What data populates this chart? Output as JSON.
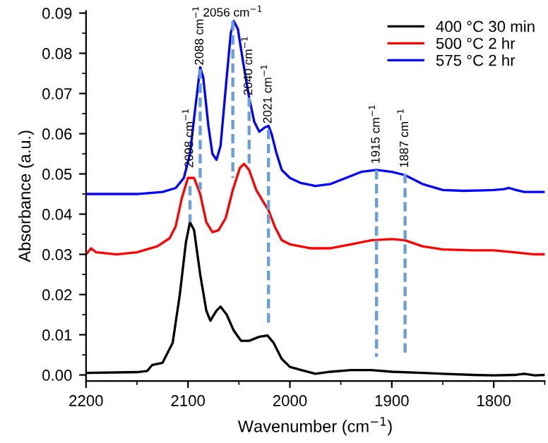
{
  "chart_data": {
    "type": "line",
    "xlabel": "Wavenumber (cm$^{−1}$)",
    "ylabel": "Absorbance (a.u.)",
    "xlim": [
      2200,
      1750
    ],
    "ylim": [
      -0.0015,
      0.0905
    ],
    "xticks": [
      2200,
      2100,
      2000,
      1900,
      1800
    ],
    "yticks": [
      {
        "value": 0,
        "label": "0.00"
      },
      {
        "value": 0.01,
        "label": "0.01"
      },
      {
        "value": 0.02,
        "label": "0.02"
      },
      {
        "value": 0.03,
        "label": "0.03"
      },
      {
        "value": 0.04,
        "label": "0.04"
      },
      {
        "value": 0.05,
        "label": "0.05"
      },
      {
        "value": 0.06,
        "label": "0.06"
      },
      {
        "value": 0.07,
        "label": "0.07"
      },
      {
        "value": 0.08,
        "label": "0.08"
      },
      {
        "value": 0.09,
        "label": "0.09"
      }
    ],
    "grid": false,
    "legend": "top right",
    "marker": "none",
    "line_style": "solid",
    "series": [
      {
        "name": "400 °C 30 min",
        "color": "#000000",
        "x": [
          2200,
          2150,
          2140,
          2135,
          2125,
          2115,
          2108,
          2102,
          2098,
          2094,
          2088,
          2082,
          2078,
          2072,
          2068,
          2062,
          2055,
          2048,
          2040,
          2030,
          2022,
          2016,
          2008,
          2000,
          1990,
          1975,
          1960,
          1940,
          1920,
          1900,
          1870,
          1850,
          1820,
          1800,
          1780,
          1770,
          1760,
          1750
        ],
        "values": [
          0.0005,
          0.0007,
          0.001,
          0.0025,
          0.003,
          0.008,
          0.02,
          0.033,
          0.038,
          0.036,
          0.025,
          0.016,
          0.0135,
          0.016,
          0.017,
          0.015,
          0.011,
          0.0085,
          0.0085,
          0.0095,
          0.0098,
          0.008,
          0.004,
          0.002,
          0.0013,
          0.0003,
          0.0008,
          0.0012,
          0.0012,
          0.0008,
          0.0005,
          0.0003,
          0.0,
          -0.0001,
          0.0,
          0.0003,
          -0.0001,
          0.0
        ]
      },
      {
        "name": "500 °C 2 hr",
        "color": "#ff0000",
        "x": [
          2200,
          2195,
          2190,
          2170,
          2150,
          2130,
          2118,
          2112,
          2106,
          2100,
          2094,
          2088,
          2082,
          2076,
          2070,
          2063,
          2056,
          2049,
          2045,
          2040,
          2033,
          2026,
          2021,
          2015,
          2008,
          2000,
          1980,
          1960,
          1940,
          1920,
          1900,
          1887,
          1870,
          1850,
          1820,
          1800,
          1780,
          1760,
          1750
        ],
        "values": [
          0.03,
          0.0315,
          0.0305,
          0.03,
          0.0305,
          0.032,
          0.034,
          0.037,
          0.044,
          0.049,
          0.049,
          0.045,
          0.038,
          0.0355,
          0.036,
          0.039,
          0.046,
          0.0515,
          0.0525,
          0.051,
          0.046,
          0.043,
          0.041,
          0.037,
          0.0335,
          0.0325,
          0.0315,
          0.0315,
          0.0325,
          0.0335,
          0.0338,
          0.0335,
          0.032,
          0.0312,
          0.031,
          0.031,
          0.0305,
          0.03,
          0.03
        ]
      },
      {
        "name": "575 °C 2 hr",
        "color": "#0000ff",
        "x": [
          2200,
          2150,
          2125,
          2112,
          2104,
          2098,
          2093,
          2088,
          2085,
          2080,
          2076,
          2072,
          2068,
          2062,
          2058,
          2055,
          2051,
          2046,
          2040,
          2035,
          2030,
          2025,
          2021,
          2018,
          2013,
          2008,
          2000,
          1990,
          1975,
          1960,
          1945,
          1930,
          1915,
          1900,
          1887,
          1870,
          1850,
          1830,
          1810,
          1800,
          1790,
          1785,
          1778,
          1770,
          1750
        ],
        "values": [
          0.045,
          0.045,
          0.0455,
          0.0465,
          0.049,
          0.055,
          0.066,
          0.0765,
          0.074,
          0.062,
          0.055,
          0.0535,
          0.057,
          0.074,
          0.085,
          0.088,
          0.086,
          0.078,
          0.069,
          0.063,
          0.0605,
          0.0615,
          0.062,
          0.06,
          0.055,
          0.051,
          0.049,
          0.0478,
          0.047,
          0.0475,
          0.049,
          0.0505,
          0.051,
          0.0505,
          0.0497,
          0.0475,
          0.046,
          0.0458,
          0.0459,
          0.046,
          0.0462,
          0.0465,
          0.046,
          0.0455,
          0.0455
        ]
      },
      {
        "color": "#6a9fd8",
        "line_style": "dashed",
        "x": [
          2098,
          2098
        ],
        "values": [
          0.047,
          0.038
        ]
      },
      {
        "color": "#6a9fd8",
        "line_style": "dashed",
        "x": [
          2088,
          2088
        ],
        "values": [
          0.076,
          0.046
        ]
      },
      {
        "color": "#6a9fd8",
        "line_style": "dashed",
        "x": [
          2056,
          2056
        ],
        "values": [
          0.088,
          0.049
        ]
      },
      {
        "color": "#6a9fd8",
        "line_style": "dashed",
        "x": [
          2040,
          2040
        ],
        "values": [
          0.069,
          0.052
        ]
      },
      {
        "color": "#6a9fd8",
        "line_style": "dashed",
        "x": [
          2021,
          2021
        ],
        "values": [
          0.061,
          0.012
        ]
      },
      {
        "color": "#6a9fd8",
        "line_style": "dashed",
        "x": [
          1915,
          1915
        ],
        "values": [
          0.051,
          0.0045
        ]
      },
      {
        "color": "#6a9fd8",
        "line_style": "dashed",
        "x": [
          1887,
          1887
        ],
        "values": [
          0.05,
          0.0045
        ]
      }
    ],
    "annotations": [
      {
        "text": "2098 cm$^{−1}$",
        "x": 2098,
        "y": 0.0515
      },
      {
        "text": "2088 cm$^{−1}$",
        "x": 2088,
        "y": 0.077
      },
      {
        "text": "2056 cm$^{−1}$",
        "x": 2056,
        "y": 0.0885
      },
      {
        "text": "2040 cm$^{−1}$",
        "x": 2040,
        "y": 0.0695
      },
      {
        "text": "2021 cm$^{−1}$",
        "x": 2021,
        "y": 0.0625
      },
      {
        "text": "1915 cm$^{−1}$",
        "x": 1915,
        "y": 0.0525
      },
      {
        "text": "1887 cm$^{−1}$",
        "x": 1887,
        "y": 0.0515
      }
    ]
  }
}
